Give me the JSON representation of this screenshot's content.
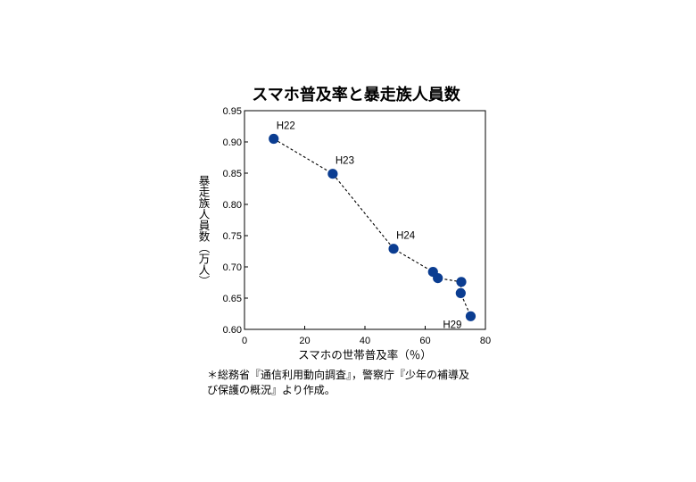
{
  "chart_data": {
    "type": "scatter",
    "title": "スマホ普及率と暴走族人員数",
    "xlabel": "スマホの世帯普及率（％）",
    "ylabel": "暴走族人員数（万人）",
    "xlim": [
      0,
      80
    ],
    "ylim": [
      0.6,
      0.95
    ],
    "x_ticks": [
      "0",
      "20",
      "40",
      "60",
      "80"
    ],
    "y_ticks": [
      "0.60",
      "0.65",
      "0.70",
      "0.75",
      "0.80",
      "0.85",
      "0.90",
      "0.95"
    ],
    "line_style": "dashed",
    "grid": false,
    "marker_color": "#0b3d91",
    "points": [
      {
        "label": "H22",
        "x": 9.7,
        "y": 0.905
      },
      {
        "label": "H23",
        "x": 29.3,
        "y": 0.849
      },
      {
        "label": "H24",
        "x": 49.5,
        "y": 0.729
      },
      {
        "label": "",
        "x": 62.6,
        "y": 0.692
      },
      {
        "label": "",
        "x": 64.2,
        "y": 0.682
      },
      {
        "label": "",
        "x": 72.0,
        "y": 0.676
      },
      {
        "label": "",
        "x": 71.8,
        "y": 0.658
      },
      {
        "label": "H29",
        "x": 75.1,
        "y": 0.621
      }
    ]
  },
  "note": "＊総務省『通信利用動向調査』，警察庁『少年の補導及\nび保護の概況』より作成。"
}
